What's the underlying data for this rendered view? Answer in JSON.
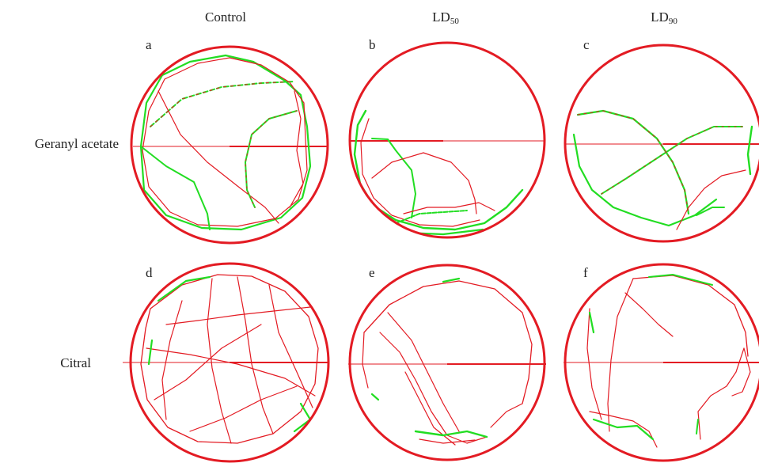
{
  "columns": [
    {
      "base": "Control",
      "sub": ""
    },
    {
      "base": "LD",
      "sub": "50"
    },
    {
      "base": "LD",
      "sub": "90"
    }
  ],
  "rows": [
    "Geranyl acetate",
    "Citral"
  ],
  "panels": [
    "a",
    "b",
    "c",
    "d",
    "e",
    "f"
  ],
  "colors": {
    "arena": "#e31b23",
    "path_primary": "#e31b23",
    "path_secondary": "#22dd22"
  }
}
